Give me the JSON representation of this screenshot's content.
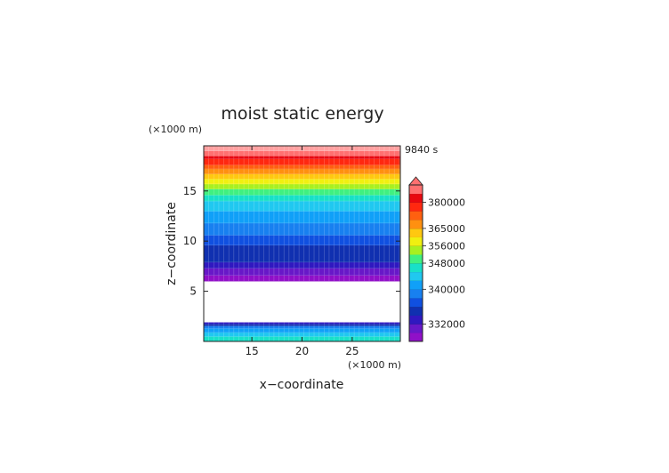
{
  "chart_data": {
    "type": "heatmap",
    "title": "moist static energy",
    "time_label": "9840 s",
    "xlabel": "x−coordinate",
    "ylabel": "z−coordinate",
    "x_unit": "(×1000 m)",
    "y_unit": "(×1000 m)",
    "xlim": [
      10.2,
      29.8
    ],
    "ylim": [
      0,
      19.5
    ],
    "x_ticks": [
      "15",
      "20",
      "25"
    ],
    "y_ticks": [
      "5",
      "10",
      "15"
    ],
    "colorbar_labels": [
      "380000",
      "365000",
      "356000",
      "348000",
      "340000",
      "332000"
    ],
    "colors": {
      "c0": "#9010c8",
      "c1": "#6818c8",
      "c2": "#3018c0",
      "c3": "#1030b0",
      "c4": "#1050e0",
      "c5": "#1880f0",
      "c6": "#10a0f8",
      "c7": "#20c8f0",
      "c8": "#18e0c8",
      "c9": "#40f080",
      "c10": "#a8f020",
      "c11": "#f0f010",
      "c12": "#ffc810",
      "c13": "#ff9010",
      "c14": "#ff6010",
      "c15": "#ff2810",
      "c16": "#e80810",
      "c17": "#ff7070",
      "c18": "#ffa0a0",
      "grid": "#ffffff"
    },
    "upper_layer": {
      "z_range": [
        6,
        19.5
      ],
      "profile": [
        {
          "z": [
            6,
            6.6
          ],
          "color": "c0"
        },
        {
          "z": [
            6.6,
            7.3
          ],
          "color": "c1"
        },
        {
          "z": [
            7.3,
            7.9
          ],
          "color": "c2"
        },
        {
          "z": [
            7.9,
            9.6
          ],
          "color": "c3"
        },
        {
          "z": [
            9.6,
            10.6
          ],
          "color": "c4"
        },
        {
          "z": [
            10.6,
            11.8
          ],
          "color": "c5"
        },
        {
          "z": [
            11.8,
            13.0
          ],
          "color": "c6"
        },
        {
          "z": [
            13.0,
            14.0
          ],
          "color": "c7"
        },
        {
          "z": [
            14.0,
            14.6
          ],
          "color": "c8"
        },
        {
          "z": [
            14.6,
            15.2
          ],
          "color": "c9"
        },
        {
          "z": [
            15.2,
            15.7
          ],
          "color": "c10"
        },
        {
          "z": [
            15.7,
            16.2
          ],
          "color": "c11"
        },
        {
          "z": [
            16.2,
            16.7
          ],
          "color": "c12"
        },
        {
          "z": [
            16.7,
            17.2
          ],
          "color": "c13"
        },
        {
          "z": [
            17.2,
            17.6
          ],
          "color": "c14"
        },
        {
          "z": [
            17.6,
            18.2
          ],
          "color": "c15"
        },
        {
          "z": [
            18.2,
            18.5
          ],
          "color": "c16"
        },
        {
          "z": [
            18.5,
            19.0
          ],
          "color": "c17"
        },
        {
          "z": [
            19.0,
            19.5
          ],
          "color": "c18"
        }
      ]
    },
    "blank_gap": [
      1.9,
      6
    ],
    "lower_layer": {
      "z_range": [
        0,
        1.9
      ],
      "profile": [
        {
          "z": [
            0,
            0.5
          ],
          "color": "c8"
        },
        {
          "z": [
            0.5,
            0.9
          ],
          "color": "c7"
        },
        {
          "z": [
            0.9,
            1.3
          ],
          "color": "c6"
        },
        {
          "z": [
            1.3,
            1.55
          ],
          "color": "c5"
        },
        {
          "z": [
            1.55,
            1.75
          ],
          "color": "c3"
        },
        {
          "z": [
            1.75,
            1.9
          ],
          "color": "c2"
        }
      ]
    },
    "colorbar": {
      "levels": [
        "c0",
        "c1",
        "c2",
        "c3",
        "c4",
        "c5",
        "c6",
        "c7",
        "c8",
        "c9",
        "c10",
        "c11",
        "c12",
        "c13",
        "c14",
        "c15",
        "c16",
        "c17"
      ],
      "overflow_color": "c17",
      "label_level_index": [
        16,
        13,
        11,
        9,
        6,
        2
      ]
    }
  }
}
